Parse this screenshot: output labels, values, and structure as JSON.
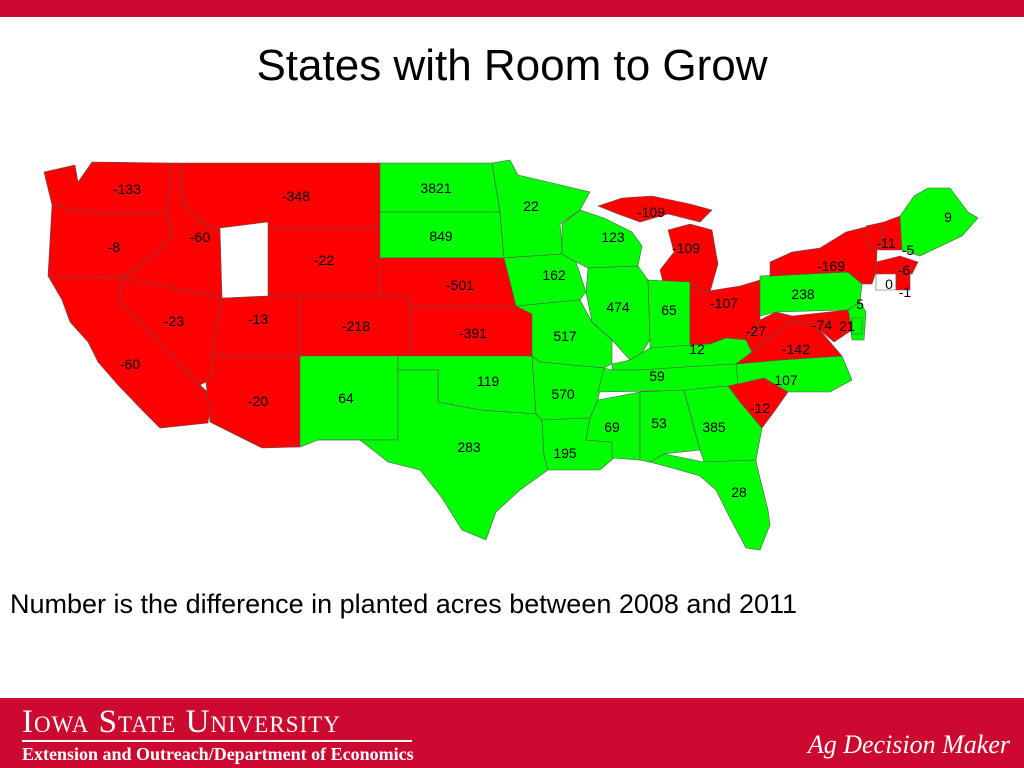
{
  "slide": {
    "title": "States with Room to Grow",
    "caption": "Number is the difference in planted acres between 2008 and 2011"
  },
  "footer": {
    "university": "Iowa State University",
    "department": "Extension and Outreach/Department of Economics",
    "brand": "Ag Decision Maker"
  },
  "colors": {
    "increase": "#00ff00",
    "decrease": "#ff0000",
    "nochange": "#ffffff",
    "accent": "#cc0a2f"
  },
  "chart_data": {
    "type": "choropleth",
    "legend": "green = positive, red = negative",
    "regions": [
      {
        "state": "WA",
        "value": -133
      },
      {
        "state": "OR",
        "value": -8
      },
      {
        "state": "ID",
        "value": -60
      },
      {
        "state": "MT",
        "value": -348
      },
      {
        "state": "WY",
        "value": -22
      },
      {
        "state": "CA",
        "value": -60
      },
      {
        "state": "NV",
        "value": -23
      },
      {
        "state": "UT",
        "value": -13
      },
      {
        "state": "CO",
        "value": -218
      },
      {
        "state": "AZ",
        "value": -20
      },
      {
        "state": "NM",
        "value": 64
      },
      {
        "state": "ND",
        "value": 3821
      },
      {
        "state": "SD",
        "value": 849
      },
      {
        "state": "NE",
        "value": -501
      },
      {
        "state": "KS",
        "value": -391
      },
      {
        "state": "OK",
        "value": 119
      },
      {
        "state": "TX",
        "value": 283
      },
      {
        "state": "MN",
        "value": 22
      },
      {
        "state": "IA",
        "value": 162
      },
      {
        "state": "MO",
        "value": 517
      },
      {
        "state": "AR",
        "value": 570
      },
      {
        "state": "LA",
        "value": 195
      },
      {
        "state": "WI",
        "value": 123
      },
      {
        "state": "IL",
        "value": 474
      },
      {
        "state": "MI-UP",
        "value": -109
      },
      {
        "state": "MI",
        "value": -109
      },
      {
        "state": "IN",
        "value": 65
      },
      {
        "state": "OH",
        "value": -107
      },
      {
        "state": "KY",
        "value": 12
      },
      {
        "state": "TN",
        "value": 59
      },
      {
        "state": "MS",
        "value": 69
      },
      {
        "state": "AL",
        "value": 53
      },
      {
        "state": "GA",
        "value": 385
      },
      {
        "state": "FL",
        "value": 28
      },
      {
        "state": "SC",
        "value": -12
      },
      {
        "state": "NC",
        "value": 107
      },
      {
        "state": "VA",
        "value": -142
      },
      {
        "state": "WV",
        "value": -27
      },
      {
        "state": "PA",
        "value": 238
      },
      {
        "state": "NY",
        "value": -169
      },
      {
        "state": "VT",
        "value": -11
      },
      {
        "state": "NH",
        "value": -5
      },
      {
        "state": "MA",
        "value": -6
      },
      {
        "state": "CT",
        "value": 0
      },
      {
        "state": "RI",
        "value": -1
      },
      {
        "state": "NJ",
        "value": 5
      },
      {
        "state": "DE",
        "value": 21
      },
      {
        "state": "MD",
        "value": -74
      },
      {
        "state": "ME",
        "value": 9
      }
    ]
  }
}
